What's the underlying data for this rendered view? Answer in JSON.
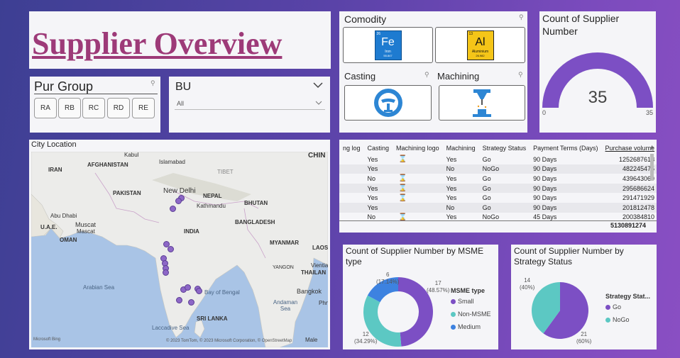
{
  "title": "Supplier Overview",
  "pur_group": {
    "title": "Pur Group",
    "chips": [
      "RA",
      "RB",
      "RC",
      "RD",
      "RE"
    ]
  },
  "bu": {
    "title": "BU",
    "selected": "All"
  },
  "commodity": {
    "title": "Comodity",
    "tiles": [
      {
        "symbol": "Fe",
        "name": "Iron",
        "number": "26",
        "mass": "55.847",
        "config": "3d⁶4s²"
      },
      {
        "symbol": "Al",
        "name": "Aluminium",
        "number": "13",
        "mass": "26.982",
        "config": "3s²3p¹"
      }
    ],
    "casting_title": "Casting",
    "machining_title": "Machining"
  },
  "count": {
    "title": "Count of Supplier Number",
    "value": "35",
    "min": "0",
    "max": "35",
    "fraction": 1.0
  },
  "map": {
    "title": "City Location",
    "attribution": "© 2023 TomTom, © 2023 Microsoft Corporation, © OpenStreetMap",
    "bing": "Microsoft Bing",
    "labels": [
      "IRAN",
      "AFGHANISTAN",
      "PAKISTAN",
      "New Delhi",
      "NEPAL",
      "Kathmandu",
      "BHUTAN",
      "INDIA",
      "BANGLADESH",
      "MYANMAR",
      "Abu Dhabi",
      "Muscat",
      "Mascat",
      "U.A.E.",
      "OMAN",
      "Islamabad",
      "TIBET",
      "CHIN",
      "LAOS",
      "THAILAN",
      "SRI LANKA",
      "Bangkok",
      "Vientia",
      "YANGON",
      "Kabul",
      "Phn",
      "Male"
    ],
    "seas": [
      "Arabian Sea",
      "Bay of Bengal",
      "Laccadive Sea",
      "Andaman Sea"
    ]
  },
  "table": {
    "columns": [
      "ng log",
      "Casting",
      "Machining logo",
      "Machining",
      "Strategy Status",
      "Payment Terms (Days)",
      "Purchase volume"
    ],
    "rows": [
      [
        "",
        "Yes",
        "icon",
        "Yes",
        "Go",
        "90 Days",
        "1252687618"
      ],
      [
        "",
        "Yes",
        "",
        "No",
        "NoGo",
        "90 Days",
        "482245475"
      ],
      [
        "",
        "No",
        "icon",
        "Yes",
        "Go",
        "90 Days",
        "439643069"
      ],
      [
        "",
        "Yes",
        "icon",
        "Yes",
        "Go",
        "90 Days",
        "295686624"
      ],
      [
        "",
        "Yes",
        "icon",
        "Yes",
        "Go",
        "90 Days",
        "291471929"
      ],
      [
        "",
        "Yes",
        "",
        "No",
        "Go",
        "90 Days",
        "201812478"
      ],
      [
        "",
        "No",
        "icon",
        "Yes",
        "NoGo",
        "45 Days",
        "200384810"
      ]
    ],
    "total": "5130891274"
  },
  "msme": {
    "title": "Count of Supplier Number by MSME type",
    "legend_title": "MSME type",
    "segments": [
      {
        "name": "Small",
        "value": 17,
        "pct": "(48.57%)",
        "color": "#7c4fc4"
      },
      {
        "name": "Non-MSME",
        "value": 12,
        "pct": "(34.29%)",
        "color": "#5cc8c3"
      },
      {
        "name": "Medium",
        "value": 6,
        "pct": "(17.14%)",
        "color": "#3d82e0"
      }
    ]
  },
  "strategy": {
    "title": "Count of Supplier Number by Strategy Status",
    "legend_title": "Strategy Stat...",
    "segments": [
      {
        "name": "Go",
        "value": 21,
        "pct": "(60%)",
        "color": "#7c4fc4"
      },
      {
        "name": "NoGo",
        "value": 14,
        "pct": "(40%)",
        "color": "#5cc8c3"
      }
    ]
  }
}
